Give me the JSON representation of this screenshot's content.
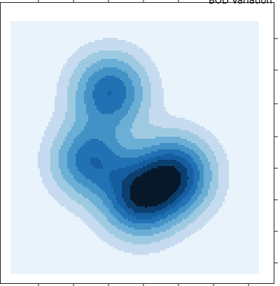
{
  "chart_data": {
    "type": "contour",
    "title": "BOD Variation",
    "xlim": [
      0,
      1
    ],
    "ylim": [
      0,
      1
    ],
    "peaks": [
      {
        "x": 0.4,
        "y": 0.72,
        "weight": 0.8,
        "spread": 0.1
      },
      {
        "x": 0.32,
        "y": 0.45,
        "weight": 0.75,
        "spread": 0.1
      },
      {
        "x": 0.52,
        "y": 0.3,
        "weight": 1.0,
        "spread": 0.1
      },
      {
        "x": 0.66,
        "y": 0.39,
        "weight": 1.0,
        "spread": 0.1
      }
    ],
    "levels": [
      0.0,
      0.06,
      0.14,
      0.24,
      0.35,
      0.46,
      0.57,
      0.68,
      0.8
    ],
    "colors": [
      "#e8f3fb",
      "#c6dbef",
      "#9ecae1",
      "#6baed6",
      "#4292c6",
      "#2171b5",
      "#155ea0",
      "#0b3f70",
      "#08182b"
    ]
  }
}
